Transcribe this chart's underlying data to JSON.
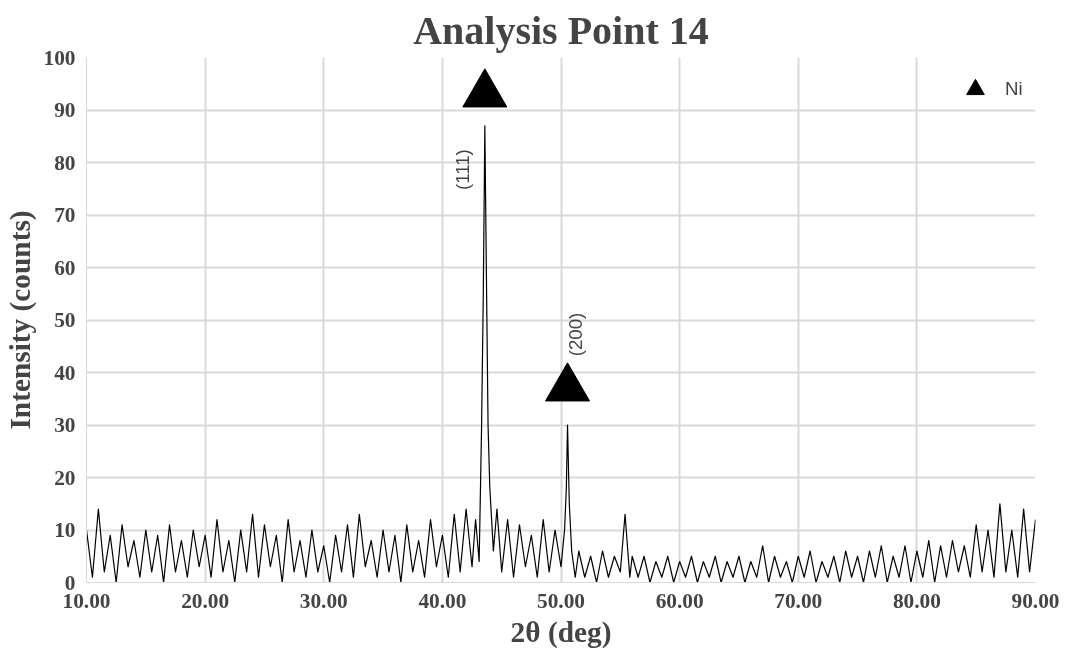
{
  "chart_data": {
    "type": "line",
    "title": "Analysis Point 14",
    "xlabel": "2θ (deg)",
    "ylabel": "Intensity (counts)",
    "xlim": [
      10,
      90
    ],
    "ylim": [
      0,
      100
    ],
    "xticks": [
      {
        "value": 10,
        "label": "10.00"
      },
      {
        "value": 20,
        "label": "20.00"
      },
      {
        "value": 30,
        "label": "30.00"
      },
      {
        "value": 40,
        "label": "40.00"
      },
      {
        "value": 50,
        "label": "50.00"
      },
      {
        "value": 60,
        "label": "60.00"
      },
      {
        "value": 70,
        "label": "70.00"
      },
      {
        "value": 80,
        "label": "80.00"
      },
      {
        "value": 90,
        "label": "90.00"
      }
    ],
    "yticks": [
      0,
      10,
      20,
      30,
      40,
      50,
      60,
      70,
      80,
      90,
      100
    ],
    "grid": true,
    "legend": "top right",
    "series": [
      {
        "color": "#000000",
        "marker": "none",
        "line_style": "solid",
        "x": [
          10.0,
          10.5,
          11.0,
          11.5,
          12.0,
          12.5,
          13.0,
          13.5,
          14.0,
          14.5,
          15.0,
          15.5,
          16.0,
          16.5,
          17.0,
          17.5,
          18.0,
          18.5,
          19.0,
          19.5,
          20.0,
          20.5,
          21.0,
          21.5,
          22.0,
          22.5,
          23.0,
          23.5,
          24.0,
          24.5,
          25.0,
          25.5,
          26.0,
          26.5,
          27.0,
          27.5,
          28.0,
          28.5,
          29.0,
          29.5,
          30.0,
          30.5,
          31.0,
          31.5,
          32.0,
          32.5,
          33.0,
          33.5,
          34.0,
          34.5,
          35.0,
          35.5,
          36.0,
          36.5,
          37.0,
          37.5,
          38.0,
          38.5,
          39.0,
          39.5,
          40.0,
          40.5,
          41.0,
          41.5,
          42.0,
          42.5,
          42.8,
          43.1,
          43.3,
          43.45,
          43.58,
          43.7,
          43.85,
          44.0,
          44.3,
          44.6,
          45.0,
          45.5,
          46.0,
          46.5,
          47.0,
          47.5,
          48.0,
          48.5,
          49.0,
          49.5,
          50.0,
          50.3,
          50.45,
          50.55,
          50.7,
          50.9,
          51.2,
          51.5,
          52.0,
          52.5,
          53.0,
          53.5,
          54.0,
          54.5,
          55.0,
          55.4,
          55.8,
          56.0,
          56.5,
          57.0,
          57.5,
          58.0,
          58.5,
          59.0,
          59.5,
          60.0,
          60.5,
          61.0,
          61.5,
          62.0,
          62.5,
          63.0,
          63.5,
          64.0,
          64.5,
          65.0,
          65.5,
          66.0,
          66.5,
          67.0,
          67.5,
          68.0,
          68.5,
          69.0,
          69.5,
          70.0,
          70.5,
          71.0,
          71.5,
          72.0,
          72.5,
          73.0,
          73.5,
          74.0,
          74.5,
          75.0,
          75.5,
          76.0,
          76.5,
          77.0,
          77.5,
          78.0,
          78.5,
          79.0,
          79.5,
          80.0,
          80.5,
          81.0,
          81.5,
          82.0,
          82.5,
          83.0,
          83.5,
          84.0,
          84.5,
          85.0,
          85.5,
          86.0,
          86.5,
          87.0,
          87.5,
          88.0,
          88.5,
          89.0,
          89.5,
          90.0
        ],
        "values": [
          10,
          1,
          14,
          2,
          9,
          0,
          11,
          3,
          8,
          1,
          10,
          2,
          9,
          0,
          11,
          2,
          8,
          1,
          10,
          3,
          9,
          1,
          12,
          2,
          8,
          0,
          10,
          2,
          13,
          1,
          11,
          3,
          9,
          0,
          12,
          2,
          8,
          1,
          10,
          2,
          7,
          0,
          9,
          2,
          11,
          1,
          13,
          3,
          8,
          1,
          10,
          2,
          9,
          0,
          11,
          2,
          8,
          1,
          12,
          3,
          9,
          1,
          13,
          2,
          14,
          3,
          12,
          4,
          29,
          55,
          87,
          61,
          30,
          18,
          6,
          14,
          2,
          12,
          1,
          11,
          3,
          9,
          1,
          12,
          2,
          10,
          3,
          10,
          18,
          30,
          15,
          6,
          1,
          6,
          1,
          5,
          0,
          6,
          1,
          5,
          2,
          13,
          1,
          5,
          1,
          5,
          0,
          4,
          1,
          5,
          0,
          4,
          1,
          5,
          0,
          4,
          1,
          5,
          0,
          4,
          1,
          5,
          0,
          4,
          1,
          7,
          0,
          5,
          1,
          4,
          0,
          5,
          1,
          6,
          0,
          4,
          1,
          5,
          0,
          6,
          1,
          5,
          0,
          6,
          1,
          7,
          0,
          5,
          1,
          7,
          0,
          6,
          1,
          8,
          0,
          7,
          1,
          8,
          2,
          7,
          1,
          11,
          2,
          10,
          1,
          15,
          2,
          10,
          1,
          14,
          2,
          12
        ]
      },
      {
        "type": "scatter",
        "name": "Ni",
        "color": "#000000",
        "marker": "triangle",
        "x": [
          43.58,
          50.55
        ],
        "values": [
          93,
          37
        ]
      }
    ],
    "annotations": [
      "(111)",
      "(200)"
    ]
  }
}
